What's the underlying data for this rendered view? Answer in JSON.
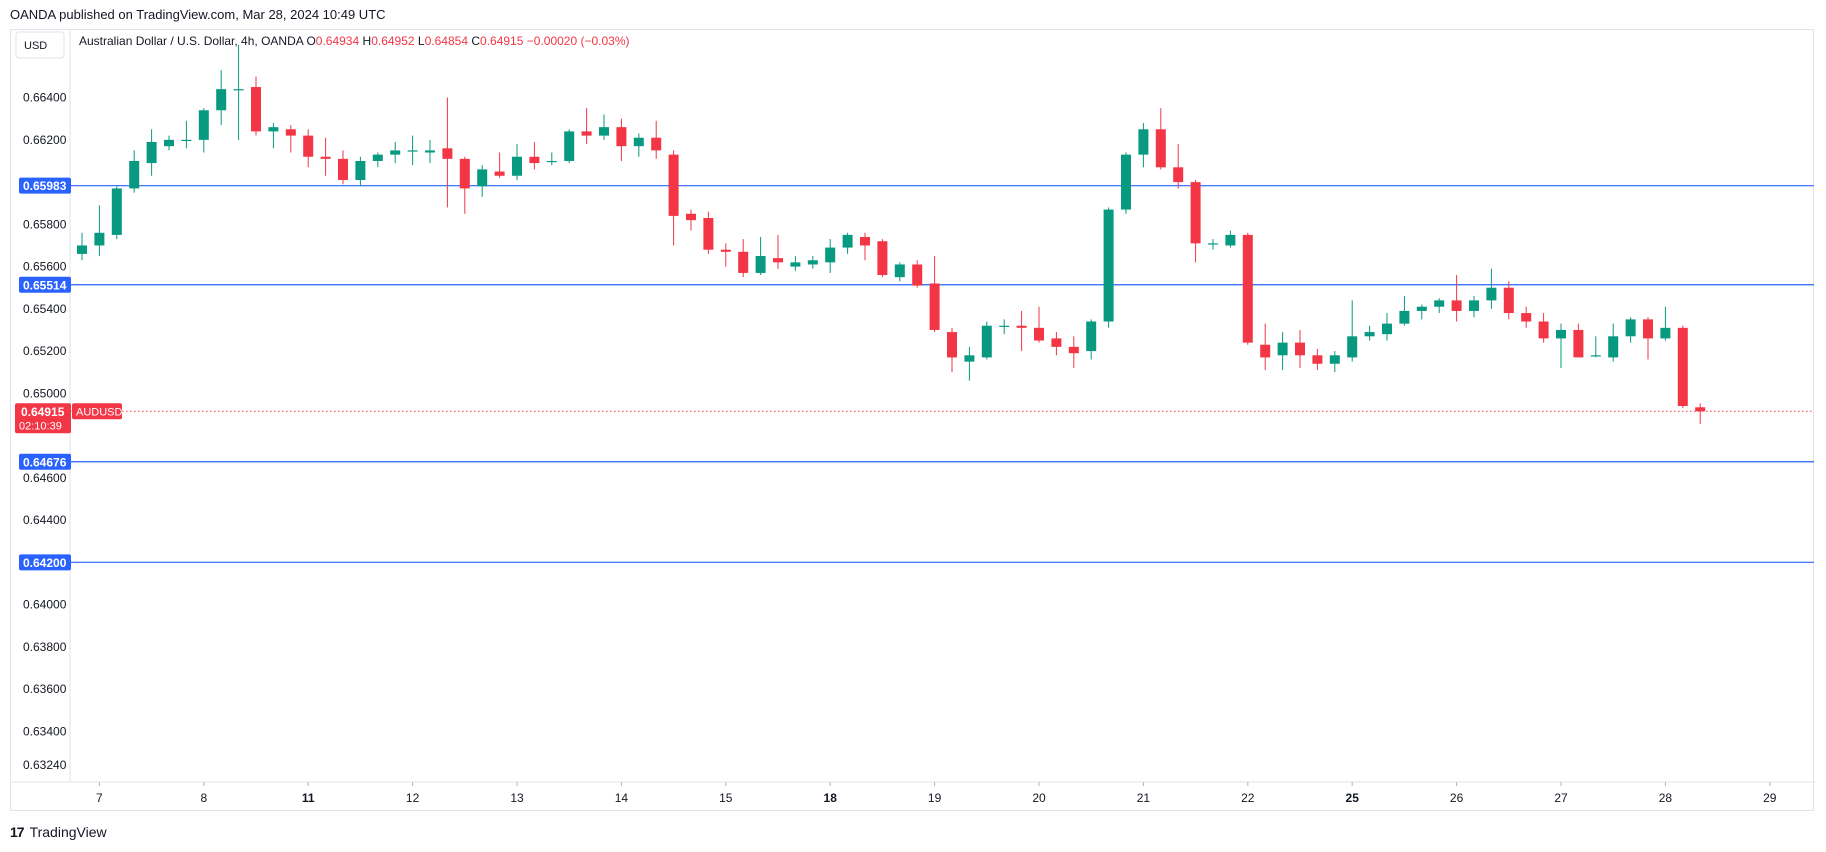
{
  "publisher_line": "OANDA published on TradingView.com, Mar 28, 2024 10:49 UTC",
  "brand": {
    "logo_glyph": "17",
    "name": "TradingView"
  },
  "colors": {
    "up": "#089981",
    "down": "#f23645",
    "level_line": "#2962ff",
    "grid": "#f0f3fa",
    "axis_text": "#131722"
  },
  "chart_data": {
    "type": "candlestick",
    "symbol": "AUDUSD",
    "currency": "USD",
    "legend": {
      "title": "Australian Dollar / U.S. Dollar, 4h, OANDA",
      "open_label": "O",
      "open": "0.64934",
      "high_label": "H",
      "high": "0.64952",
      "low_label": "L",
      "low": "0.64854",
      "close_label": "C",
      "close": "0.64915",
      "change": "−0.00020 (−0.03%)"
    },
    "ylim": [
      0.6316,
      0.6672
    ],
    "y_ticks": [
      "0.66400",
      "0.66200",
      "0.65800",
      "0.65600",
      "0.65400",
      "0.65200",
      "0.65000",
      "0.64600",
      "0.64400",
      "0.64000",
      "0.63800",
      "0.63600",
      "0.63400",
      "0.63240"
    ],
    "x_ticks": [
      {
        "label": "7",
        "bar": 1,
        "bold": false
      },
      {
        "label": "8",
        "bar": 7,
        "bold": false
      },
      {
        "label": "11",
        "bar": 13,
        "bold": true
      },
      {
        "label": "12",
        "bar": 19,
        "bold": false
      },
      {
        "label": "13",
        "bar": 25,
        "bold": false
      },
      {
        "label": "14",
        "bar": 31,
        "bold": false
      },
      {
        "label": "15",
        "bar": 37,
        "bold": false
      },
      {
        "label": "18",
        "bar": 43,
        "bold": true
      },
      {
        "label": "19",
        "bar": 49,
        "bold": false
      },
      {
        "label": "20",
        "bar": 55,
        "bold": false
      },
      {
        "label": "21",
        "bar": 61,
        "bold": false
      },
      {
        "label": "22",
        "bar": 67,
        "bold": false
      },
      {
        "label": "25",
        "bar": 73,
        "bold": true
      },
      {
        "label": "26",
        "bar": 79,
        "bold": false
      },
      {
        "label": "27",
        "bar": 85,
        "bold": false
      },
      {
        "label": "28",
        "bar": 91,
        "bold": false
      },
      {
        "label": "29",
        "bar": 97,
        "bold": false
      }
    ],
    "levels": [
      "0.65983",
      "0.65514",
      "0.64676",
      "0.64200"
    ],
    "current_price": {
      "value": "0.64915",
      "countdown": "02:10:39",
      "symbol_tag": "AUDUSD"
    },
    "candles": [
      [
        0.6566,
        0.657,
        0.6576,
        0.6563
      ],
      [
        0.657,
        0.6576,
        0.6589,
        0.6565
      ],
      [
        0.6575,
        0.6597,
        0.6598,
        0.6573
      ],
      [
        0.6597,
        0.661,
        0.6615,
        0.6595
      ],
      [
        0.6609,
        0.6619,
        0.6625,
        0.6603
      ],
      [
        0.6617,
        0.662,
        0.6622,
        0.6615
      ],
      [
        0.662,
        0.662,
        0.6629,
        0.6616
      ],
      [
        0.662,
        0.6634,
        0.6635,
        0.6614
      ],
      [
        0.6634,
        0.6644,
        0.6653,
        0.6627
      ],
      [
        0.6644,
        0.6644,
        0.6665,
        0.662
      ],
      [
        0.6645,
        0.6624,
        0.665,
        0.6622
      ],
      [
        0.6624,
        0.6626,
        0.6628,
        0.6616
      ],
      [
        0.6625,
        0.6622,
        0.6627,
        0.6614
      ],
      [
        0.6622,
        0.6612,
        0.6625,
        0.6607
      ],
      [
        0.6612,
        0.6611,
        0.6621,
        0.6603
      ],
      [
        0.6611,
        0.6601,
        0.6615,
        0.6599
      ],
      [
        0.6601,
        0.661,
        0.6612,
        0.6598
      ],
      [
        0.661,
        0.6613,
        0.6614,
        0.6607
      ],
      [
        0.6613,
        0.6615,
        0.6619,
        0.6609
      ],
      [
        0.6615,
        0.6615,
        0.6622,
        0.6608
      ],
      [
        0.6614,
        0.6615,
        0.662,
        0.6609
      ],
      [
        0.6616,
        0.6611,
        0.664,
        0.6588
      ],
      [
        0.6611,
        0.6597,
        0.6612,
        0.6585
      ],
      [
        0.6598,
        0.6606,
        0.6608,
        0.6593
      ],
      [
        0.6605,
        0.6603,
        0.6614,
        0.6602
      ],
      [
        0.6603,
        0.6612,
        0.6618,
        0.6601
      ],
      [
        0.6612,
        0.6609,
        0.6619,
        0.6606
      ],
      [
        0.661,
        0.661,
        0.6614,
        0.6608
      ],
      [
        0.661,
        0.6624,
        0.6625,
        0.6609
      ],
      [
        0.6624,
        0.6622,
        0.6635,
        0.6618
      ],
      [
        0.6622,
        0.6626,
        0.6632,
        0.662
      ],
      [
        0.6626,
        0.6617,
        0.663,
        0.661
      ],
      [
        0.6617,
        0.6621,
        0.6623,
        0.6612
      ],
      [
        0.6621,
        0.6615,
        0.6629,
        0.6611
      ],
      [
        0.6613,
        0.6584,
        0.6615,
        0.657
      ],
      [
        0.6585,
        0.6582,
        0.6587,
        0.6577
      ],
      [
        0.6583,
        0.6568,
        0.6586,
        0.6566
      ],
      [
        0.6568,
        0.6567,
        0.6571,
        0.656
      ],
      [
        0.6567,
        0.6557,
        0.6573,
        0.6555
      ],
      [
        0.6557,
        0.6565,
        0.6574,
        0.6556
      ],
      [
        0.6564,
        0.6562,
        0.6575,
        0.6559
      ],
      [
        0.656,
        0.6562,
        0.6565,
        0.6558
      ],
      [
        0.6561,
        0.6563,
        0.6565,
        0.6559
      ],
      [
        0.6562,
        0.6569,
        0.6573,
        0.6557
      ],
      [
        0.6569,
        0.6575,
        0.6576,
        0.6566
      ],
      [
        0.6574,
        0.657,
        0.6576,
        0.6563
      ],
      [
        0.6572,
        0.6556,
        0.6573,
        0.6555
      ],
      [
        0.6555,
        0.6561,
        0.6562,
        0.6553
      ],
      [
        0.6561,
        0.6551,
        0.6563,
        0.655
      ],
      [
        0.6552,
        0.653,
        0.6565,
        0.6529
      ],
      [
        0.6529,
        0.6517,
        0.6531,
        0.651
      ],
      [
        0.6515,
        0.6518,
        0.6522,
        0.6506
      ],
      [
        0.6517,
        0.6532,
        0.6534,
        0.6516
      ],
      [
        0.6532,
        0.6532,
        0.6535,
        0.6528
      ],
      [
        0.6532,
        0.6531,
        0.6539,
        0.652
      ],
      [
        0.6531,
        0.6525,
        0.6541,
        0.6524
      ],
      [
        0.6526,
        0.6522,
        0.6529,
        0.6518
      ],
      [
        0.6522,
        0.6519,
        0.6527,
        0.6512
      ],
      [
        0.652,
        0.6534,
        0.6535,
        0.6516
      ],
      [
        0.6534,
        0.6587,
        0.6588,
        0.6531
      ],
      [
        0.6587,
        0.6613,
        0.6614,
        0.6585
      ],
      [
        0.6613,
        0.6625,
        0.6628,
        0.6607
      ],
      [
        0.6625,
        0.6607,
        0.6635,
        0.6606
      ],
      [
        0.6607,
        0.66,
        0.6618,
        0.6597
      ],
      [
        0.66,
        0.6571,
        0.6601,
        0.6562
      ],
      [
        0.6571,
        0.6571,
        0.6573,
        0.6568
      ],
      [
        0.657,
        0.6575,
        0.6577,
        0.6569
      ],
      [
        0.6575,
        0.6524,
        0.6576,
        0.6523
      ],
      [
        0.6523,
        0.6517,
        0.6533,
        0.6511
      ],
      [
        0.6518,
        0.6524,
        0.6529,
        0.6511
      ],
      [
        0.6524,
        0.6518,
        0.653,
        0.6512
      ],
      [
        0.6518,
        0.6514,
        0.6521,
        0.6511
      ],
      [
        0.6514,
        0.6518,
        0.652,
        0.651
      ],
      [
        0.6517,
        0.6527,
        0.6544,
        0.6515
      ],
      [
        0.6527,
        0.6529,
        0.6532,
        0.6525
      ],
      [
        0.6528,
        0.6533,
        0.6538,
        0.6525
      ],
      [
        0.6533,
        0.6539,
        0.6546,
        0.6532
      ],
      [
        0.6539,
        0.6541,
        0.6542,
        0.6535
      ],
      [
        0.6541,
        0.6544,
        0.6545,
        0.6538
      ],
      [
        0.6544,
        0.6539,
        0.6556,
        0.6534
      ],
      [
        0.6539,
        0.6544,
        0.6546,
        0.6536
      ],
      [
        0.6544,
        0.655,
        0.6559,
        0.654
      ],
      [
        0.655,
        0.6538,
        0.6553,
        0.6535
      ],
      [
        0.6538,
        0.6534,
        0.6541,
        0.6531
      ],
      [
        0.6534,
        0.6526,
        0.6538,
        0.6524
      ],
      [
        0.6526,
        0.653,
        0.6533,
        0.6512
      ],
      [
        0.653,
        0.6517,
        0.6533,
        0.6517
      ],
      [
        0.6518,
        0.6518,
        0.6527,
        0.6517
      ],
      [
        0.6517,
        0.6527,
        0.6533,
        0.6515
      ],
      [
        0.6527,
        0.6535,
        0.6536,
        0.6524
      ],
      [
        0.6535,
        0.6526,
        0.6536,
        0.6516
      ],
      [
        0.6526,
        0.6531,
        0.6541,
        0.6525
      ],
      [
        0.6531,
        0.6494,
        0.6532,
        0.6493
      ],
      [
        0.64934,
        0.64915,
        0.64952,
        0.64854
      ]
    ]
  }
}
